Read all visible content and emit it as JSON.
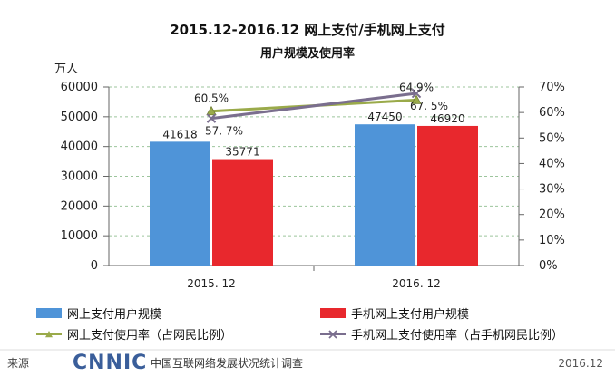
{
  "chart_data": {
    "type": "bar",
    "title": "2015.12-2016.12 网上支付/手机网上支付",
    "subtitle": "用户规模及使用率",
    "ylabel_left": "万人",
    "categories": [
      "2015. 12",
      "2016. 12"
    ],
    "left_axis": {
      "ylim": [
        0,
        60000
      ],
      "ticks": [
        "0",
        "10000",
        "20000",
        "30000",
        "40000",
        "50000",
        "60000"
      ]
    },
    "right_axis": {
      "ylim": [
        0,
        70
      ],
      "ticks": [
        "0%",
        "10%",
        "20%",
        "30%",
        "40%",
        "50%",
        "60%",
        "70%"
      ]
    },
    "series": [
      {
        "name": "网上支付用户规模",
        "type": "bar",
        "axis": "left",
        "color": "#4f94d8",
        "values": [
          41618,
          47450
        ],
        "labels": [
          "41618",
          "47450"
        ]
      },
      {
        "name": "手机网上支付用户规模",
        "type": "bar",
        "axis": "left",
        "color": "#e8282d",
        "values": [
          35771,
          46920
        ],
        "labels": [
          "35771",
          "46920"
        ]
      },
      {
        "name": "网上支付使用率（占网民比例）",
        "type": "line",
        "axis": "right",
        "color": "#9aaa4a",
        "marker": "triangle",
        "values": [
          60.5,
          64.9
        ],
        "labels": [
          "60.5%",
          "64.9%"
        ]
      },
      {
        "name": "手机网上支付使用率（占手机网民比例）",
        "type": "line",
        "axis": "right",
        "color": "#7a6e8e",
        "marker": "x",
        "values": [
          57.7,
          67.5
        ],
        "labels": [
          "57. 7%",
          "67. 5%"
        ]
      }
    ],
    "grid": true
  },
  "footer": {
    "source_label": "来源",
    "brand": "CNNIC",
    "org": "中国互联网络发展状况统计调查",
    "date": "2016.12"
  }
}
